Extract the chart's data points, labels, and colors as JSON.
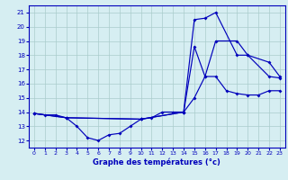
{
  "title": "Graphe des températures (°c)",
  "bg_color": "#d6eef2",
  "line_color": "#0000bb",
  "grid_color": "#aacccc",
  "xlim": [
    -0.5,
    23.5
  ],
  "ylim": [
    11.5,
    21.5
  ],
  "yticks": [
    12,
    13,
    14,
    15,
    16,
    17,
    18,
    19,
    20,
    21
  ],
  "xticks": [
    0,
    1,
    2,
    3,
    4,
    5,
    6,
    7,
    8,
    9,
    10,
    11,
    12,
    13,
    14,
    15,
    16,
    17,
    18,
    19,
    20,
    21,
    22,
    23
  ],
  "series": [
    {
      "x": [
        0,
        1,
        2,
        3,
        4,
        5,
        6,
        7,
        8,
        9,
        10,
        11,
        12,
        13,
        14,
        15,
        16,
        17,
        18,
        19,
        20,
        21,
        22,
        23
      ],
      "y": [
        13.9,
        13.8,
        13.8,
        13.6,
        13.0,
        12.2,
        12.0,
        12.4,
        12.5,
        13.0,
        13.5,
        13.6,
        14.0,
        14.0,
        14.0,
        15.0,
        16.5,
        16.5,
        15.5,
        15.3,
        15.2,
        15.2,
        15.5,
        15.5
      ]
    },
    {
      "x": [
        0,
        3,
        10,
        14,
        15,
        16,
        17,
        19,
        20,
        22,
        23
      ],
      "y": [
        13.9,
        13.6,
        13.5,
        14.0,
        20.5,
        20.6,
        21.0,
        18.0,
        18.0,
        16.5,
        16.4
      ]
    },
    {
      "x": [
        0,
        3,
        10,
        14,
        15,
        16,
        17,
        19,
        20,
        22,
        23
      ],
      "y": [
        13.9,
        13.6,
        13.5,
        14.0,
        18.6,
        16.5,
        19.0,
        19.0,
        18.0,
        17.5,
        16.5
      ]
    }
  ]
}
